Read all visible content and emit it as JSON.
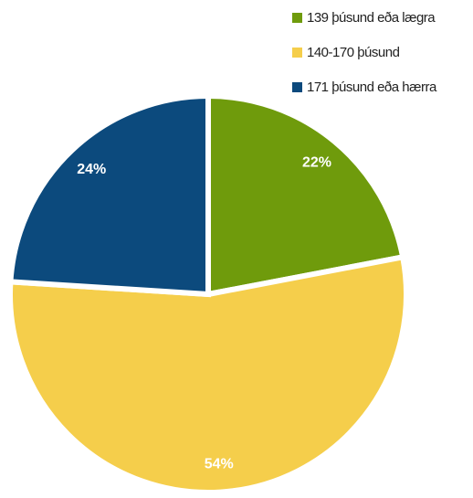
{
  "chart_data": {
    "type": "pie",
    "categories": [
      "139 þúsund eða lægra",
      "140-170 þúsund",
      "171 þúsund eða hærra"
    ],
    "values": [
      22,
      54,
      24
    ],
    "value_labels": [
      "22%",
      "54%",
      "24%"
    ],
    "colors": [
      "#6f9b0c",
      "#f5ce4b",
      "#0c4a7d"
    ],
    "legend": "top-right"
  }
}
